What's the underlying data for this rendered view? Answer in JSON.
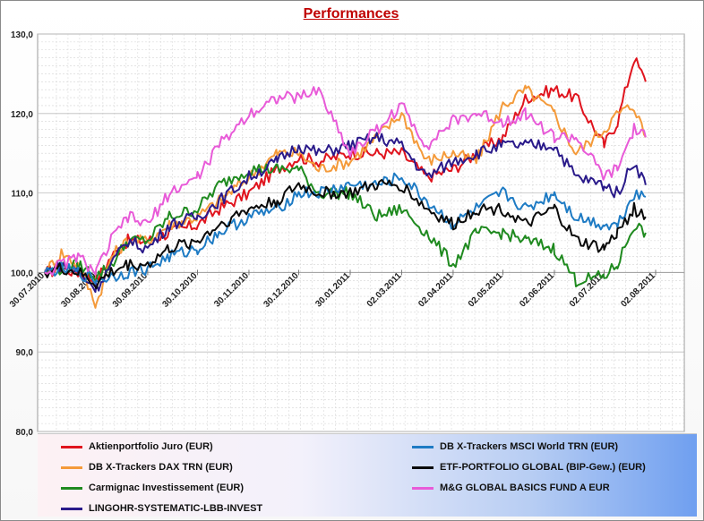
{
  "chart_data": {
    "type": "line",
    "title": "Performances",
    "xlabel": "",
    "ylabel": "",
    "ylim": [
      80,
      130
    ],
    "yticks": [
      "80,0",
      "90,0",
      "100,0",
      "110,0",
      "120,0",
      "130,0"
    ],
    "ytick_values": [
      80,
      90,
      100,
      110,
      120,
      130
    ],
    "xlim": [
      "2010-07-30",
      "2011-08-02"
    ],
    "xtick_labels": [
      "30.07.2010",
      "30.08.2010",
      "30.09.2010",
      "30.10.2010",
      "30.11.2010",
      "30.12.2010",
      "30.01.2011",
      "02.03.2011",
      "02.04.2011",
      "02.05.2011",
      "02.06.2011",
      "02.07.2011",
      "02.08.2011"
    ],
    "xtick_days": [
      0,
      31,
      62,
      92,
      123,
      153,
      184,
      215,
      246,
      276,
      307,
      337,
      368
    ],
    "grid": true,
    "legend_position": "bottom",
    "x_days": [
      0,
      10,
      20,
      31,
      40,
      50,
      62,
      75,
      92,
      105,
      123,
      140,
      153,
      165,
      184,
      200,
      215,
      230,
      246,
      260,
      276,
      290,
      307,
      320,
      337,
      345,
      355,
      362
    ],
    "series": [
      {
        "name": "Aktienportfolio Juro (EUR)",
        "color": "#e0141e",
        "values": [
          100,
          100.5,
          100,
          99,
          102,
          104,
          104,
          105,
          106,
          108,
          110,
          113,
          114.5,
          114,
          115,
          115,
          115,
          112,
          113,
          115,
          117,
          122,
          123,
          122,
          116,
          119,
          127,
          124
        ]
      },
      {
        "name": "DB X-Trackers  DAX TRN (EUR)",
        "color": "#f49a3a",
        "values": [
          100,
          102.5,
          101,
          96,
          102,
          104,
          104,
          106,
          107,
          109,
          112,
          115,
          115,
          113,
          114,
          117,
          120,
          114,
          115,
          114,
          121,
          123,
          120,
          115,
          118,
          120,
          121,
          117
        ]
      },
      {
        "name": "Carmignac Investissement (EUR)",
        "color": "#1f8a1f",
        "values": [
          100,
          100.5,
          101,
          99.5,
          101,
          104,
          104,
          107,
          108,
          111,
          113,
          113,
          113,
          110,
          110,
          107,
          108,
          105,
          101,
          105,
          105,
          104,
          103,
          99,
          99.5,
          101,
          106,
          105
        ]
      },
      {
        "name": "LINGOHR-SYSTEMATIC-LBB-INVEST",
        "color": "#2a1a8a",
        "values": [
          100,
          101,
          100,
          98,
          101,
          104,
          103,
          106,
          107,
          109,
          112,
          114,
          116,
          115,
          116,
          117,
          116,
          112,
          114,
          115,
          116,
          116,
          116,
          112,
          111,
          110,
          114,
          111
        ]
      },
      {
        "name": "DB X-Trackers  MSCI World TRN (EUR)",
        "color": "#1e7bc4",
        "values": [
          100,
          100.5,
          100,
          99,
          99.5,
          100,
          100.5,
          102,
          103,
          105,
          107,
          108,
          110,
          110,
          111,
          111,
          112,
          109,
          106,
          108,
          110,
          108,
          110,
          107,
          106,
          106,
          110,
          109.5
        ]
      },
      {
        "name": "ETF-PORTFOLIO GLOBAL (BIP-Gew.) (EUR)",
        "color": "#0a0a0a",
        "values": [
          100,
          100.5,
          100,
          98.5,
          100,
          101,
          101,
          103,
          104,
          106,
          108,
          109,
          111,
          110,
          110,
          111,
          111,
          108,
          106,
          108,
          108,
          106,
          108,
          104,
          103,
          105,
          108,
          107
        ]
      },
      {
        "name": "M&G GLOBAL BASICS FUND A EUR",
        "color": "#e85ad8",
        "values": [
          100,
          101,
          102,
          100,
          104,
          107,
          106,
          110,
          112,
          116,
          120,
          122,
          122,
          123,
          115,
          118,
          121,
          116,
          119,
          120,
          119,
          120,
          117,
          117,
          112,
          113,
          118,
          117
        ]
      }
    ]
  },
  "legend": {
    "left": [
      {
        "label": "Aktienportfolio Juro (EUR)",
        "color": "#e0141e"
      },
      {
        "label": "DB X-Trackers  DAX TRN (EUR)",
        "color": "#f49a3a"
      },
      {
        "label": "Carmignac Investissement (EUR)",
        "color": "#1f8a1f"
      },
      {
        "label": "LINGOHR-SYSTEMATIC-LBB-INVEST",
        "color": "#2a1a8a"
      }
    ],
    "right": [
      {
        "label": "DB X-Trackers  MSCI World TRN (EUR)",
        "color": "#1e7bc4"
      },
      {
        "label": "ETF-PORTFOLIO GLOBAL (BIP-Gew.) (EUR)",
        "color": "#0a0a0a"
      },
      {
        "label": "M&G GLOBAL BASICS FUND A EUR",
        "color": "#e85ad8"
      }
    ]
  }
}
